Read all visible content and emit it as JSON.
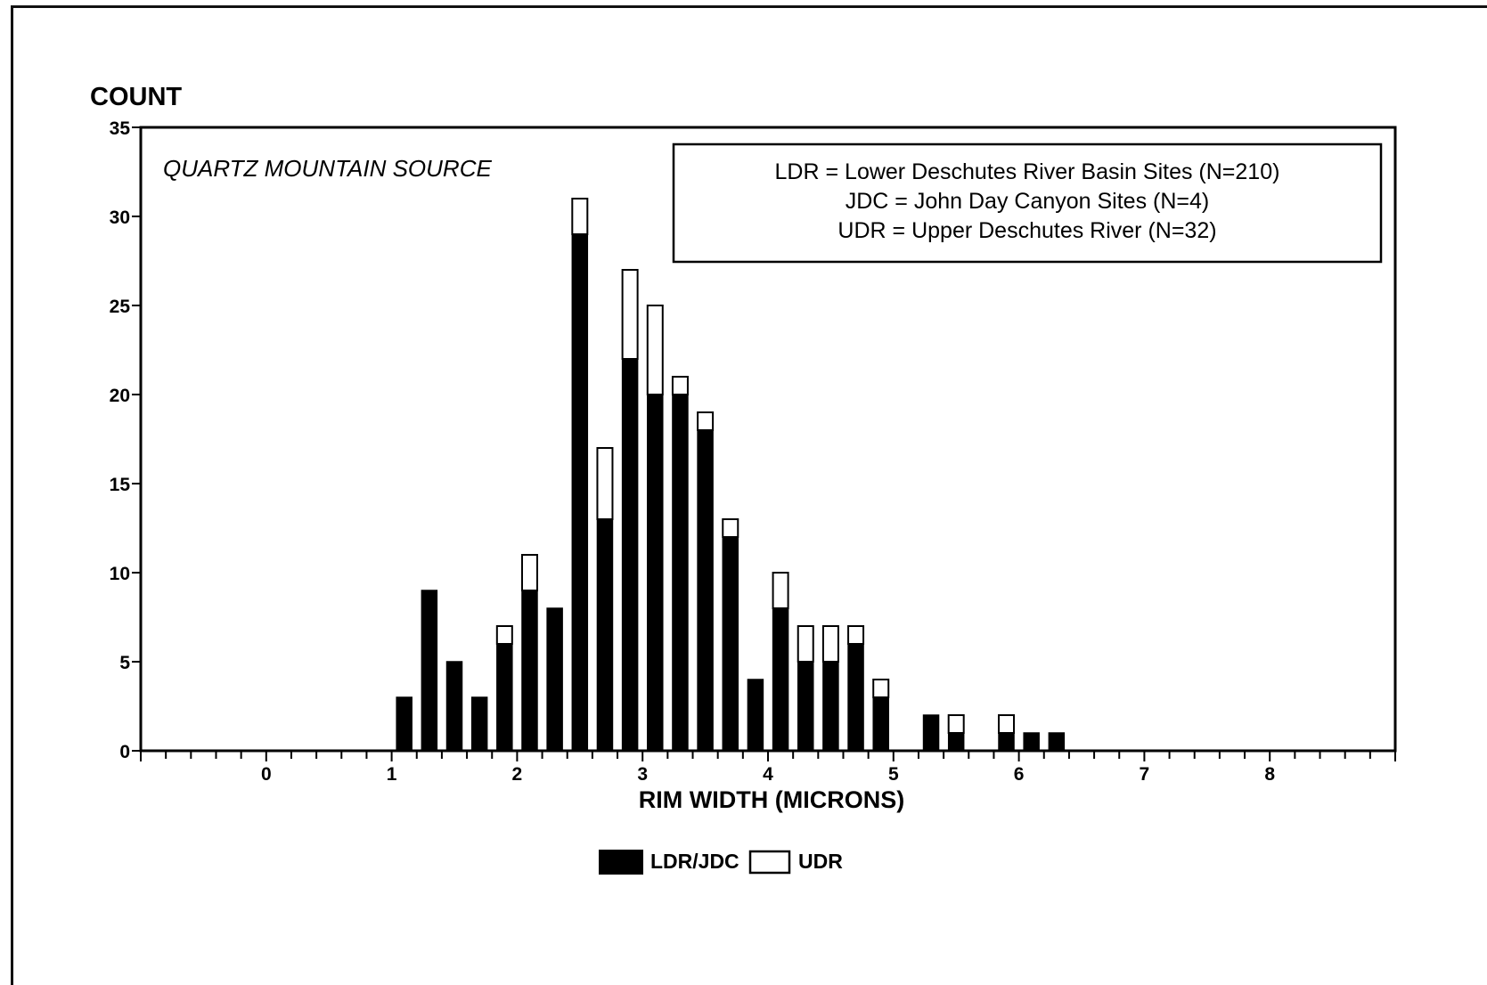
{
  "chart_data": {
    "type": "bar",
    "stacked": true,
    "title": "COUNT",
    "annotation": "QUARTZ MOUNTAIN SOURCE",
    "xlabel": "RIM WIDTH (MICRONS)",
    "ylabel": "COUNT",
    "xlim": [
      -1,
      9
    ],
    "ylim": [
      0,
      35
    ],
    "x_ticks": [
      0,
      1,
      2,
      3,
      4,
      5,
      6,
      7,
      8
    ],
    "y_ticks": [
      0,
      5,
      10,
      15,
      20,
      25,
      30,
      35
    ],
    "legend_box": [
      "LDR = Lower Deschutes River Basin Sites (N=210)",
      "JDC = John Day Canyon Sites (N=4)",
      "UDR = Upper Deschutes River (N=32)"
    ],
    "x": [
      1.1,
      1.3,
      1.5,
      1.7,
      1.9,
      2.1,
      2.3,
      2.5,
      2.7,
      2.9,
      3.1,
      3.3,
      3.5,
      3.7,
      3.9,
      4.1,
      4.3,
      4.5,
      4.7,
      4.9,
      5.3,
      5.5,
      5.9,
      6.1,
      6.3
    ],
    "series": [
      {
        "name": "LDR/JDC",
        "color": "#000000",
        "values": [
          3,
          9,
          5,
          3,
          6,
          9,
          8,
          29,
          13,
          22,
          20,
          20,
          18,
          12,
          4,
          8,
          5,
          5,
          6,
          3,
          2,
          1,
          1,
          1,
          1
        ]
      },
      {
        "name": "UDR",
        "color": "#ffffff",
        "values": [
          0,
          0,
          0,
          0,
          1,
          2,
          0,
          2,
          4,
          5,
          5,
          1,
          1,
          1,
          0,
          2,
          2,
          2,
          1,
          1,
          0,
          1,
          1,
          0,
          0
        ]
      }
    ],
    "legend_position": "bottom-center"
  }
}
